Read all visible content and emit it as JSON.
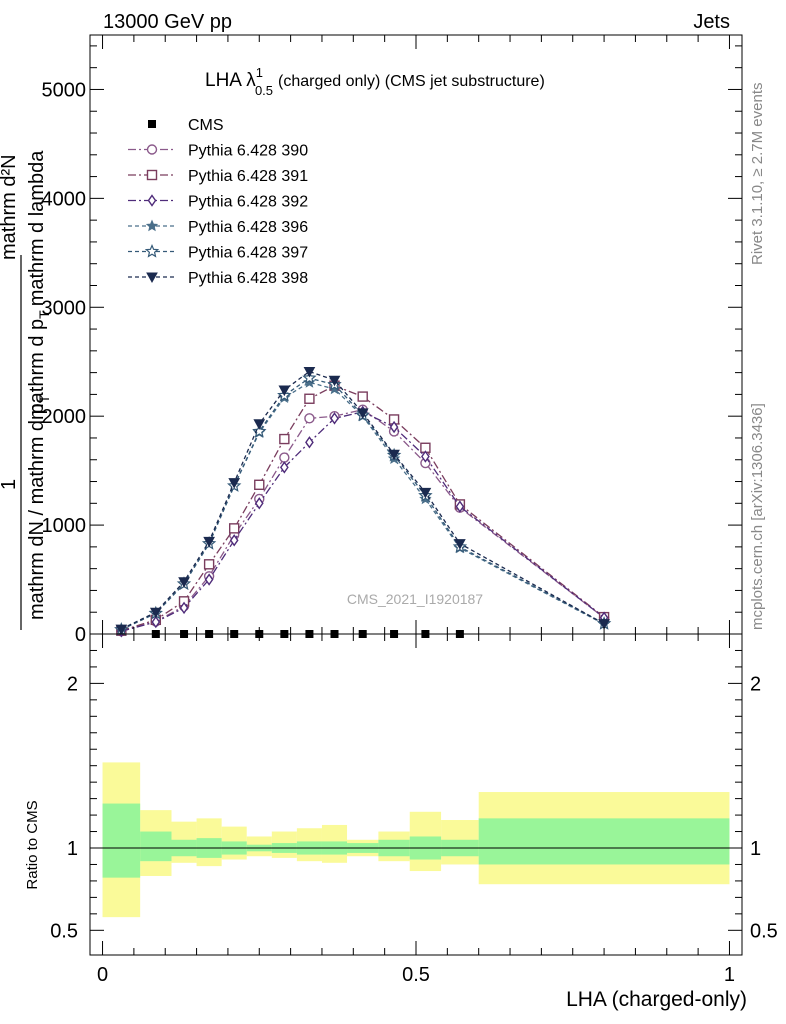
{
  "header": {
    "left": "13000 GeV pp",
    "right": "Jets"
  },
  "side_labels": {
    "top": "Rivet 3.1.10, ≥ 2.7M events",
    "bottom": "mcplots.cern.ch [arXiv:1306.3436]"
  },
  "watermark": "CMS_2021_I1920187",
  "colors": {
    "c390": "#8b5a8b",
    "c391": "#7a3d5e",
    "c392": "#4f2c7a",
    "c396": "#4a6f8a",
    "c397": "#355a78",
    "c398": "#1b2a4f",
    "band_inner": "#99f599",
    "band_outer": "#fafa99"
  },
  "chart_data": [
    {
      "type": "line",
      "title": "LHA λ",
      "title_sup": "1",
      "title_sub": "0.5",
      "title_rest": "(charged only) (CMS jet substructure)",
      "ylabel_numerator": "mathrm d²N",
      "ylabel_denominator": "mathrm d p",
      "ylabel_denominator_sub": "T",
      "ylabel_denominator_rest": "mathrm d lambda",
      "ylabel_prefix": "1",
      "ylabel_prefix_den": "mathrm dN / mathrm d p",
      "ylabel_prefix_den_sub": "T",
      "xlim": [
        -0.02,
        1.02
      ],
      "ylim": [
        0,
        5500
      ],
      "yticks": [
        {
          "v": 0,
          "label": "0"
        },
        {
          "v": 1000,
          "label": "1000"
        },
        {
          "v": 2000,
          "label": "2000"
        },
        {
          "v": 3000,
          "label": "3000"
        },
        {
          "v": 4000,
          "label": "4000"
        },
        {
          "v": 5000,
          "label": "5000"
        }
      ],
      "x": [
        0.03,
        0.085,
        0.13,
        0.17,
        0.21,
        0.25,
        0.29,
        0.33,
        0.37,
        0.415,
        0.465,
        0.515,
        0.57,
        0.8
      ],
      "cms": {
        "name": "CMS",
        "x": [
          0.085,
          0.13,
          0.17,
          0.21,
          0.25,
          0.29,
          0.33,
          0.37,
          0.415,
          0.465,
          0.515,
          0.57
        ],
        "y": [
          0,
          0,
          0,
          0,
          0,
          0,
          0,
          0,
          0,
          0,
          0,
          0
        ]
      },
      "series": [
        {
          "name": "Pythia 6.428 390",
          "marker": "circle-open",
          "dash": "8,3,2,3",
          "color_key": "c390",
          "y": [
            25,
            115,
            255,
            530,
            910,
            1240,
            1620,
            1980,
            2000,
            2060,
            1860,
            1570,
            1160,
            150
          ]
        },
        {
          "name": "Pythia 6.428 391",
          "marker": "square-open",
          "dash": "8,3,2,3",
          "color_key": "c391",
          "y": [
            30,
            130,
            300,
            640,
            970,
            1370,
            1790,
            2160,
            2280,
            2180,
            1970,
            1710,
            1190,
            155
          ]
        },
        {
          "name": "Pythia 6.428 392",
          "marker": "diamond-open",
          "dash": "8,3,2,3",
          "color_key": "c392",
          "y": [
            25,
            110,
            240,
            500,
            860,
            1200,
            1530,
            1760,
            1980,
            2040,
            1900,
            1630,
            1170,
            150
          ]
        },
        {
          "name": "Pythia 6.428 396",
          "marker": "star-filled",
          "dash": "4,3",
          "color_key": "c396",
          "y": [
            40,
            190,
            460,
            830,
            1360,
            1850,
            2170,
            2310,
            2250,
            2000,
            1610,
            1240,
            790,
            90
          ]
        },
        {
          "name": "Pythia 6.428 397",
          "marker": "star-open",
          "dash": "4,3",
          "color_key": "c397",
          "y": [
            40,
            190,
            460,
            830,
            1360,
            1860,
            2190,
            2350,
            2290,
            2010,
            1640,
            1270,
            800,
            95
          ]
        },
        {
          "name": "Pythia 6.428 398",
          "marker": "triangle-down-filled",
          "dash": "4,3",
          "color_key": "c398",
          "y": [
            45,
            200,
            480,
            850,
            1390,
            1930,
            2240,
            2410,
            2330,
            2030,
            1650,
            1300,
            830,
            95
          ]
        }
      ],
      "legend_position": "top-left"
    },
    {
      "type": "area",
      "ylabel": "Ratio to CMS",
      "xlabel": "LHA (charged-only)",
      "xlim": [
        -0.02,
        1.02
      ],
      "ylim": [
        0.35,
        2.3
      ],
      "xticks": [
        {
          "v": 0,
          "label": "0"
        },
        {
          "v": 0.5,
          "label": "0.5"
        },
        {
          "v": 1,
          "label": "1"
        }
      ],
      "yticks": [
        {
          "v": 0.5,
          "label": "0.5"
        },
        {
          "v": 1,
          "label": "1"
        },
        {
          "v": 2,
          "label": "2"
        }
      ],
      "reference_line": 1,
      "bins": [
        {
          "lo": 0.0,
          "hi": 0.06,
          "inner": [
            0.82,
            1.27
          ],
          "outer": [
            0.58,
            1.52
          ]
        },
        {
          "lo": 0.06,
          "hi": 0.11,
          "inner": [
            0.92,
            1.1
          ],
          "outer": [
            0.83,
            1.23
          ]
        },
        {
          "lo": 0.11,
          "hi": 0.15,
          "inner": [
            0.95,
            1.05
          ],
          "outer": [
            0.91,
            1.16
          ]
        },
        {
          "lo": 0.15,
          "hi": 0.19,
          "inner": [
            0.94,
            1.06
          ],
          "outer": [
            0.89,
            1.18
          ]
        },
        {
          "lo": 0.19,
          "hi": 0.23,
          "inner": [
            0.96,
            1.04
          ],
          "outer": [
            0.93,
            1.13
          ]
        },
        {
          "lo": 0.23,
          "hi": 0.27,
          "inner": [
            0.98,
            1.02
          ],
          "outer": [
            0.95,
            1.07
          ]
        },
        {
          "lo": 0.27,
          "hi": 0.31,
          "inner": [
            0.97,
            1.03
          ],
          "outer": [
            0.94,
            1.1
          ]
        },
        {
          "lo": 0.31,
          "hi": 0.35,
          "inner": [
            0.96,
            1.04
          ],
          "outer": [
            0.92,
            1.12
          ]
        },
        {
          "lo": 0.35,
          "hi": 0.39,
          "inner": [
            0.96,
            1.04
          ],
          "outer": [
            0.91,
            1.14
          ]
        },
        {
          "lo": 0.39,
          "hi": 0.44,
          "inner": [
            0.97,
            1.03
          ],
          "outer": [
            0.95,
            1.05
          ]
        },
        {
          "lo": 0.44,
          "hi": 0.49,
          "inner": [
            0.95,
            1.05
          ],
          "outer": [
            0.92,
            1.1
          ]
        },
        {
          "lo": 0.49,
          "hi": 0.54,
          "inner": [
            0.93,
            1.07
          ],
          "outer": [
            0.86,
            1.22
          ]
        },
        {
          "lo": 0.54,
          "hi": 0.6,
          "inner": [
            0.95,
            1.05
          ],
          "outer": [
            0.9,
            1.17
          ]
        },
        {
          "lo": 0.6,
          "hi": 1.0,
          "inner": [
            0.9,
            1.18
          ],
          "outer": [
            0.78,
            1.34
          ]
        }
      ]
    }
  ]
}
